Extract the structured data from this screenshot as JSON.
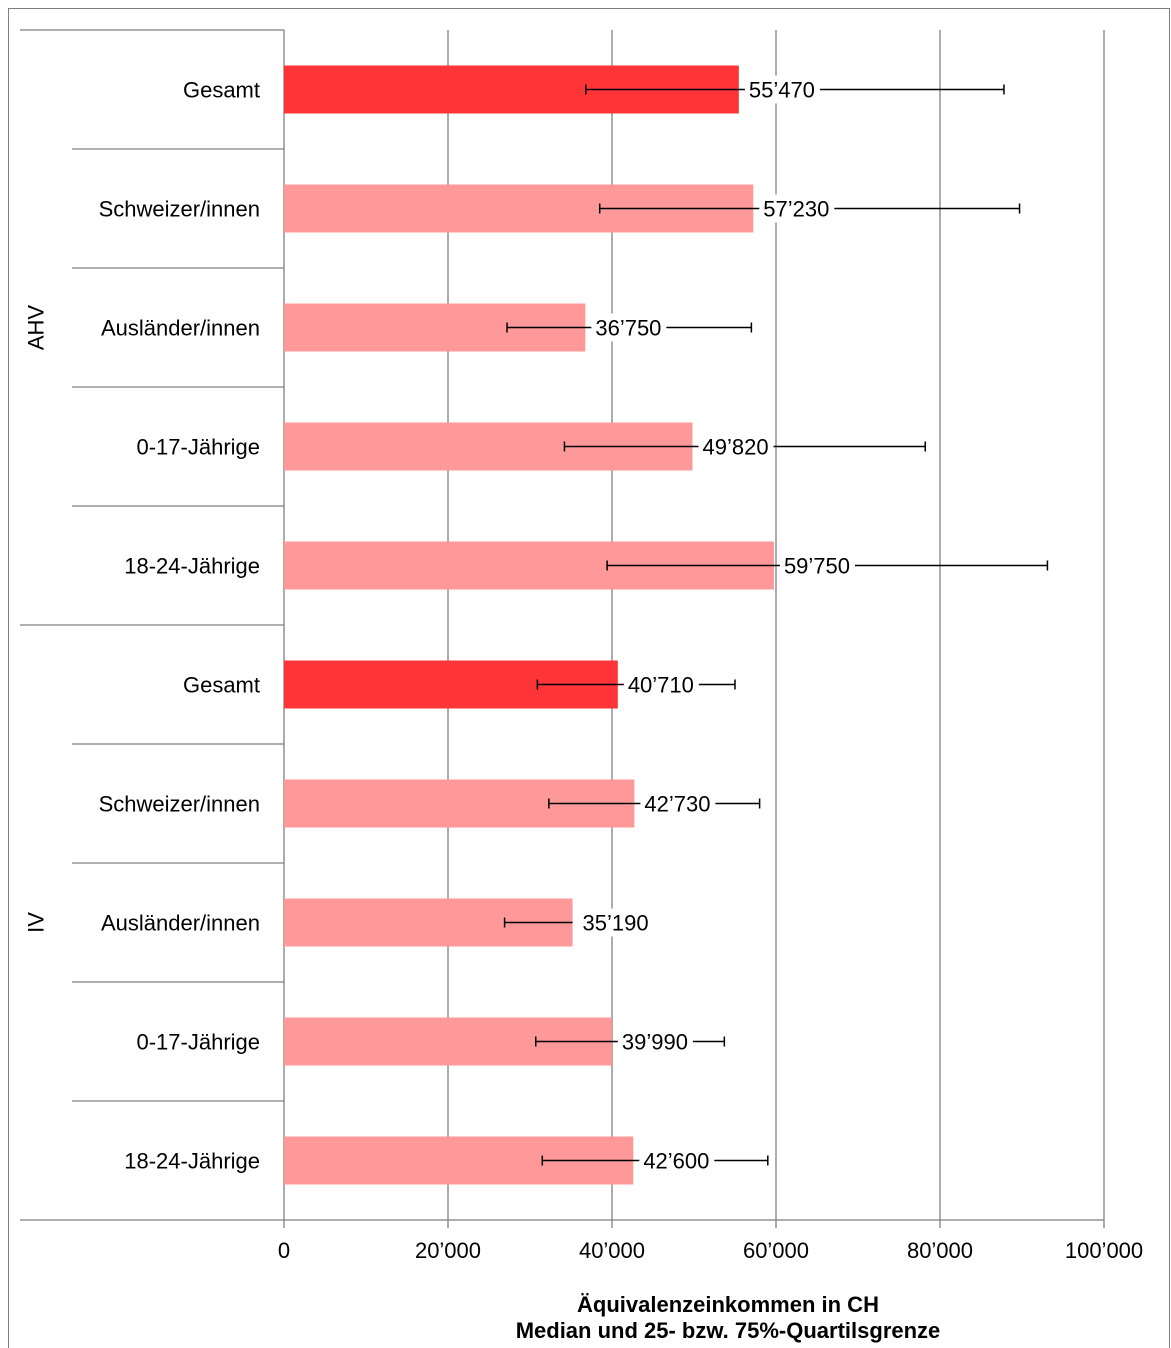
{
  "chart_data": {
    "type": "bar",
    "orientation": "horizontal",
    "xlabel": [
      "Äquivalenzeinkommen in CH",
      "Median und 25- bzw. 75%-Quartilsgrenze"
    ],
    "xlim": [
      0,
      100000
    ],
    "xticks": [
      {
        "value": 0,
        "label": "0"
      },
      {
        "value": 20000,
        "label": "20’000"
      },
      {
        "value": 40000,
        "label": "40’000"
      },
      {
        "value": 60000,
        "label": "60’000"
      },
      {
        "value": 80000,
        "label": "80’000"
      },
      {
        "value": 100000,
        "label": "100’000"
      }
    ],
    "grid": "vertical",
    "groups": [
      {
        "name": "AHV",
        "rows": [
          {
            "category": "Gesamt",
            "value": 55470,
            "label": "55’470",
            "q25": 36800,
            "q75": 87800,
            "highlight": true
          },
          {
            "category": "Schweizer/innen",
            "value": 57230,
            "label": "57’230",
            "q25": 38500,
            "q75": 89700,
            "highlight": false
          },
          {
            "category": "Ausländer/innen",
            "value": 36750,
            "label": "36’750",
            "q25": 27200,
            "q75": 57000,
            "highlight": false
          },
          {
            "category": "0-17-Jährige",
            "value": 49820,
            "label": "49’820",
            "q25": 34200,
            "q75": 78200,
            "highlight": false
          },
          {
            "category": "18-24-Jährige",
            "value": 59750,
            "label": "59’750",
            "q25": 39400,
            "q75": 93100,
            "highlight": false
          }
        ]
      },
      {
        "name": "IV",
        "rows": [
          {
            "category": "Gesamt",
            "value": 40710,
            "label": "40’710",
            "q25": 30900,
            "q75": 55000,
            "highlight": true
          },
          {
            "category": "Schweizer/innen",
            "value": 42730,
            "label": "42’730",
            "q25": 32300,
            "q75": 58000,
            "highlight": false
          },
          {
            "category": "Ausländer/innen",
            "value": 35190,
            "label": "35’190",
            "q25": 26900,
            "q75": 35190,
            "highlight": false
          },
          {
            "category": "0-17-Jährige",
            "value": 39990,
            "label": "39’990",
            "q25": 30700,
            "q75": 53700,
            "highlight": false
          },
          {
            "category": "18-24-Jährige",
            "value": 42600,
            "label": "42’600",
            "q25": 31500,
            "q75": 59000,
            "highlight": false
          }
        ]
      }
    ],
    "colors": {
      "highlight": "#ff3437",
      "normal": "#ff9999",
      "grid": "#7f7f7f",
      "errorbar": "#000000"
    }
  }
}
